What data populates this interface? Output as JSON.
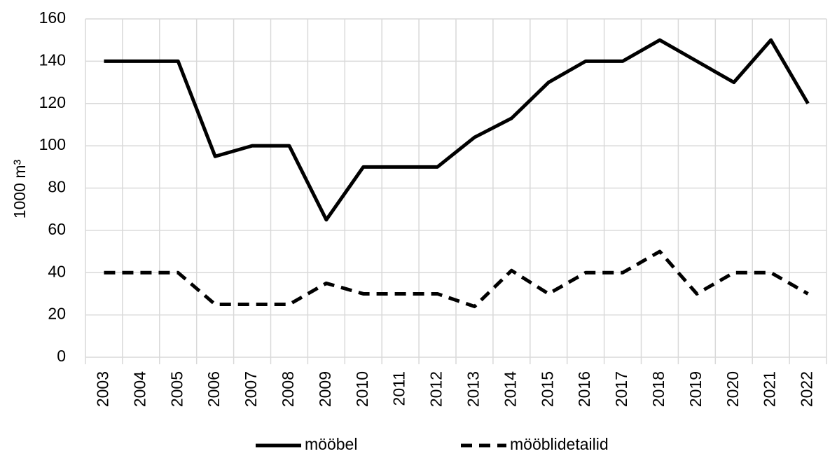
{
  "chart_data": {
    "type": "line",
    "y_label": "1000 m³",
    "categories": [
      "2003",
      "2004",
      "2005",
      "2006",
      "2007",
      "2008",
      "2009",
      "2010",
      "2011",
      "2012",
      "2013",
      "2014",
      "2015",
      "2016",
      "2017",
      "2018",
      "2019",
      "2020",
      "2021",
      "2022"
    ],
    "series": [
      {
        "name": "mööbel",
        "color": "#000000",
        "dash": "solid",
        "values": [
          140,
          140,
          140,
          95,
          100,
          100,
          65,
          90,
          90,
          90,
          104,
          113,
          130,
          140,
          140,
          150,
          140,
          130,
          150,
          120
        ]
      },
      {
        "name": "mööblidetailid",
        "color": "#000000",
        "dash": "dashed",
        "values": [
          40,
          40,
          40,
          25,
          25,
          25,
          35,
          30,
          30,
          30,
          24,
          41,
          30,
          40,
          40,
          50,
          30,
          40,
          40,
          30
        ]
      }
    ],
    "ylim": [
      0,
      160
    ],
    "yticks": [
      0,
      20,
      40,
      60,
      80,
      100,
      120,
      140,
      160
    ],
    "grid": true,
    "legend": "bottom"
  }
}
